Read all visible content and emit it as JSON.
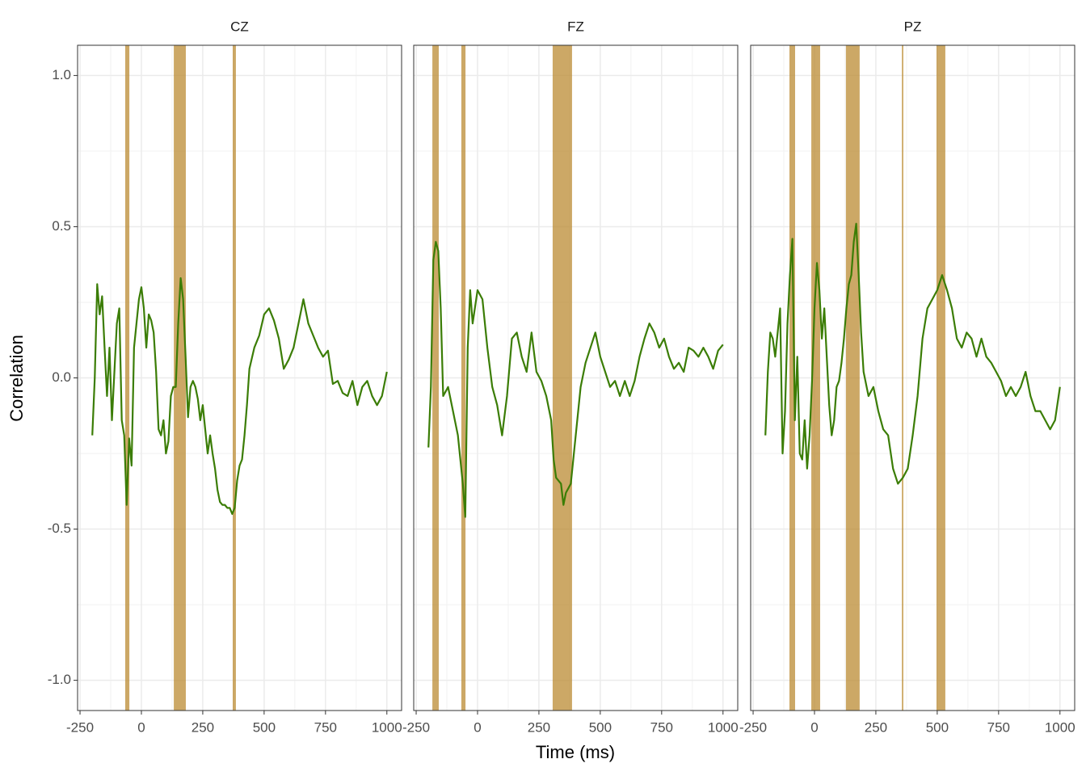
{
  "chart_data": [
    {
      "type": "line",
      "title": "CZ",
      "ylabel": "Correlation",
      "color": "#3b7d06",
      "band_color": "#b8862b",
      "xlim": [
        -260,
        1060
      ],
      "ylim": [
        -1.1,
        1.1
      ],
      "xticks": [
        -250,
        0,
        250,
        500,
        750,
        1000
      ],
      "yticks": [
        {
          "value": -1,
          "label": "-1.0"
        },
        -0.5,
        {
          "value": 0,
          "label": "0.0"
        },
        0.5,
        {
          "value": 1,
          "label": "1.0"
        }
      ],
      "bands": [
        [
          -66,
          -49
        ],
        [
          132,
          181
        ],
        [
          372,
          385
        ]
      ],
      "x": [
        -200,
        -190,
        -180,
        -170,
        -160,
        -150,
        -140,
        -130,
        -120,
        -110,
        -100,
        -90,
        -80,
        -70,
        -60,
        -50,
        -40,
        -30,
        -20,
        -10,
        0,
        10,
        20,
        30,
        40,
        50,
        60,
        70,
        80,
        90,
        100,
        110,
        120,
        130,
        140,
        150,
        160,
        170,
        180,
        190,
        200,
        210,
        220,
        230,
        240,
        250,
        260,
        270,
        280,
        290,
        300,
        310,
        320,
        330,
        340,
        350,
        360,
        370,
        380,
        390,
        400,
        410,
        420,
        430,
        440,
        460,
        480,
        500,
        520,
        540,
        560,
        580,
        600,
        620,
        640,
        660,
        680,
        700,
        720,
        740,
        760,
        780,
        800,
        820,
        840,
        860,
        880,
        900,
        920,
        940,
        960,
        980,
        1000
      ],
      "values": [
        -0.19,
        0.0,
        0.31,
        0.21,
        0.27,
        0.1,
        -0.06,
        0.1,
        -0.14,
        0.02,
        0.18,
        0.23,
        -0.14,
        -0.19,
        -0.42,
        -0.2,
        -0.29,
        0.1,
        0.18,
        0.26,
        0.3,
        0.23,
        0.1,
        0.21,
        0.19,
        0.15,
        0.02,
        -0.17,
        -0.19,
        -0.14,
        -0.25,
        -0.21,
        -0.06,
        -0.03,
        -0.03,
        0.18,
        0.33,
        0.26,
        0.07,
        -0.13,
        -0.03,
        -0.01,
        -0.03,
        -0.07,
        -0.14,
        -0.09,
        -0.17,
        -0.25,
        -0.19,
        -0.25,
        -0.3,
        -0.37,
        -0.41,
        -0.42,
        -0.42,
        -0.43,
        -0.43,
        -0.45,
        -0.43,
        -0.34,
        -0.29,
        -0.27,
        -0.19,
        -0.09,
        0.03,
        0.1,
        0.14,
        0.21,
        0.23,
        0.19,
        0.13,
        0.03,
        0.06,
        0.1,
        0.18,
        0.26,
        0.18,
        0.14,
        0.1,
        0.07,
        0.09,
        -0.02,
        -0.01,
        -0.05,
        -0.06,
        -0.01,
        -0.09,
        -0.03,
        -0.01,
        -0.06,
        -0.09,
        -0.06,
        0.02
      ]
    },
    {
      "type": "line",
      "title": "FZ",
      "xlabel": "Time (ms)",
      "color": "#3b7d06",
      "band_color": "#b8862b",
      "xlim": [
        -260,
        1060
      ],
      "ylim": [
        -1.1,
        1.1
      ],
      "xticks": [
        -250,
        0,
        250,
        500,
        750,
        1000
      ],
      "bands": [
        [
          -184,
          -158
        ],
        [
          -66,
          -49
        ],
        [
          306,
          385
        ]
      ],
      "x": [
        -200,
        -190,
        -180,
        -170,
        -160,
        -150,
        -140,
        -120,
        -100,
        -80,
        -60,
        -50,
        -40,
        -30,
        -20,
        0,
        20,
        40,
        60,
        80,
        100,
        120,
        140,
        160,
        180,
        200,
        220,
        240,
        260,
        280,
        300,
        310,
        320,
        340,
        350,
        360,
        380,
        390,
        400,
        420,
        440,
        460,
        480,
        500,
        520,
        540,
        560,
        580,
        600,
        620,
        640,
        660,
        680,
        700,
        720,
        740,
        760,
        780,
        800,
        820,
        840,
        860,
        880,
        900,
        920,
        940,
        960,
        980,
        1000
      ],
      "values": [
        -0.23,
        -0.03,
        0.39,
        0.45,
        0.42,
        0.23,
        -0.06,
        -0.03,
        -0.11,
        -0.19,
        -0.35,
        -0.46,
        0.1,
        0.29,
        0.18,
        0.29,
        0.26,
        0.1,
        -0.03,
        -0.09,
        -0.19,
        -0.06,
        0.13,
        0.15,
        0.07,
        0.02,
        0.15,
        0.02,
        -0.01,
        -0.06,
        -0.14,
        -0.27,
        -0.33,
        -0.35,
        -0.42,
        -0.38,
        -0.35,
        -0.27,
        -0.19,
        -0.03,
        0.05,
        0.1,
        0.15,
        0.07,
        0.02,
        -0.03,
        -0.01,
        -0.06,
        -0.01,
        -0.06,
        -0.01,
        0.07,
        0.13,
        0.18,
        0.15,
        0.1,
        0.13,
        0.07,
        0.03,
        0.05,
        0.02,
        0.1,
        0.09,
        0.07,
        0.1,
        0.07,
        0.03,
        0.09,
        0.11
      ]
    },
    {
      "type": "line",
      "title": "PZ",
      "color": "#3b7d06",
      "band_color": "#b8862b",
      "xlim": [
        -260,
        1060
      ],
      "ylim": [
        -1.1,
        1.1
      ],
      "xticks": [
        -250,
        0,
        250,
        500,
        750,
        1000
      ],
      "bands": [
        [
          -102,
          -79
        ],
        [
          -13,
          23
        ],
        [
          128,
          184
        ],
        [
          356,
          362
        ],
        [
          497,
          533
        ]
      ],
      "x": [
        -200,
        -190,
        -180,
        -170,
        -160,
        -150,
        -140,
        -130,
        -120,
        -110,
        -100,
        -90,
        -80,
        -70,
        -60,
        -50,
        -40,
        -30,
        -20,
        -10,
        0,
        10,
        20,
        30,
        40,
        50,
        60,
        70,
        80,
        90,
        100,
        110,
        120,
        130,
        140,
        150,
        160,
        170,
        180,
        190,
        200,
        220,
        240,
        260,
        280,
        300,
        320,
        340,
        360,
        380,
        400,
        420,
        440,
        460,
        480,
        500,
        520,
        540,
        560,
        580,
        600,
        620,
        640,
        660,
        680,
        700,
        720,
        740,
        760,
        780,
        800,
        820,
        840,
        860,
        880,
        900,
        920,
        940,
        960,
        980,
        1000
      ],
      "values": [
        -0.19,
        0.02,
        0.15,
        0.13,
        0.07,
        0.15,
        0.23,
        -0.25,
        -0.11,
        0.18,
        0.34,
        0.46,
        -0.14,
        0.07,
        -0.25,
        -0.27,
        -0.14,
        -0.3,
        -0.19,
        -0.01,
        0.23,
        0.38,
        0.29,
        0.13,
        0.23,
        0.07,
        -0.09,
        -0.19,
        -0.14,
        -0.03,
        -0.01,
        0.05,
        0.13,
        0.23,
        0.31,
        0.34,
        0.45,
        0.51,
        0.34,
        0.15,
        0.02,
        -0.06,
        -0.03,
        -0.11,
        -0.17,
        -0.19,
        -0.3,
        -0.35,
        -0.33,
        -0.3,
        -0.19,
        -0.06,
        0.13,
        0.23,
        0.26,
        0.29,
        0.34,
        0.29,
        0.23,
        0.13,
        0.1,
        0.15,
        0.13,
        0.07,
        0.13,
        0.07,
        0.05,
        0.02,
        -0.01,
        -0.06,
        -0.03,
        -0.06,
        -0.03,
        0.02,
        -0.06,
        -0.11,
        -0.11,
        -0.14,
        -0.17,
        -0.14,
        -0.03
      ]
    }
  ]
}
